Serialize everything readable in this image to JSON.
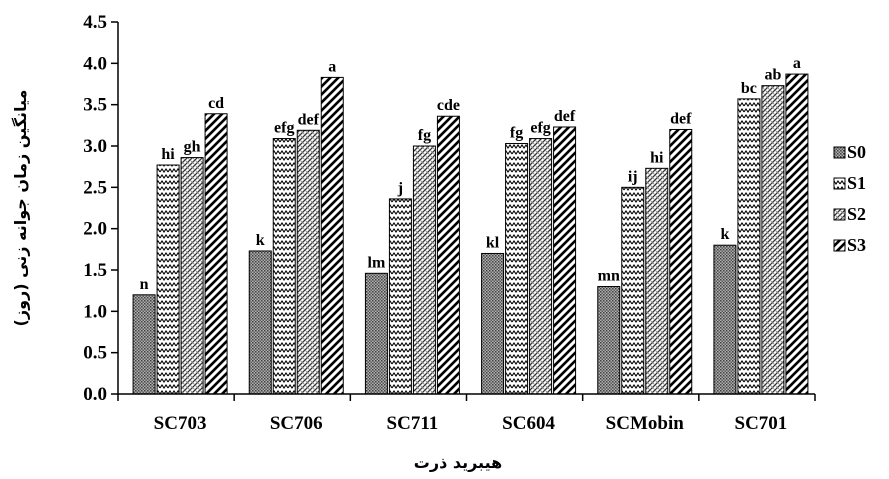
{
  "chart_data": {
    "type": "bar",
    "xlabel": "هیبرید ذرت",
    "ylabel": "میانگین زمان جوانه زنی (روز)",
    "ylim": [
      0,
      4.5
    ],
    "ytick_step": 0.5,
    "yticks": [
      "0.0",
      "0.5",
      "1.0",
      "1.5",
      "2.0",
      "2.5",
      "3.0",
      "3.5",
      "4.0",
      "4.5"
    ],
    "grid": false,
    "legend_position": "right",
    "categories": [
      "SC703",
      "SC706",
      "SC711",
      "SC604",
      "SCMobin",
      "SC701"
    ],
    "series": [
      {
        "name": "S0",
        "pattern": "dots",
        "values": [
          1.2,
          1.73,
          1.46,
          1.7,
          1.3,
          1.8
        ],
        "labels": [
          "n",
          "k",
          "lm",
          "kl",
          "mn",
          "k"
        ]
      },
      {
        "name": "S1",
        "pattern": "zigzag",
        "values": [
          2.77,
          3.09,
          2.36,
          3.03,
          2.5,
          3.57
        ],
        "labels": [
          "hi",
          "efg",
          "j",
          "fg",
          "ij",
          "bc"
        ]
      },
      {
        "name": "S2",
        "pattern": "checker",
        "values": [
          2.86,
          3.19,
          3.0,
          3.09,
          2.73,
          3.73
        ],
        "labels": [
          "gh",
          "def",
          "fg",
          "efg",
          "hi",
          "ab"
        ]
      },
      {
        "name": "S3",
        "pattern": "diagonal",
        "values": [
          3.39,
          3.83,
          3.36,
          3.23,
          3.2,
          3.87
        ],
        "labels": [
          "cd",
          "a",
          "cde",
          "def",
          "def",
          "a"
        ]
      }
    ]
  }
}
